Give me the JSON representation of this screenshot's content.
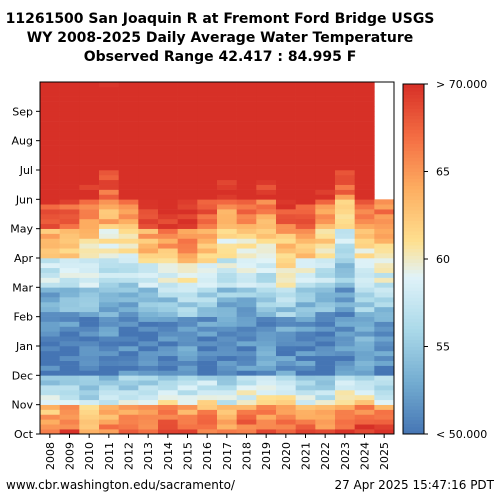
{
  "title_lines": [
    "11261500 San Joaquin R at Fremont Ford Bridge USGS",
    "WY 2008-2025 Daily Average Water Temperature",
    "Observed Range 42.417 : 84.995 F"
  ],
  "footer": {
    "source": "www.cbr.washington.edu/sacramento/",
    "timestamp": "27 Apr 2025 15:47:16 PDT"
  },
  "chart_data": {
    "type": "heatmap",
    "title": "11261500 San Joaquin R at Fremont Ford Bridge USGS WY 2008-2025 Daily Average Water Temperature",
    "subtitle": "Observed Range 42.417 : 84.995 F",
    "x_categories": [
      "2008",
      "2009",
      "2010",
      "2011",
      "2012",
      "2013",
      "2014",
      "2015",
      "2016",
      "2017",
      "2018",
      "2019",
      "2020",
      "2021",
      "2022",
      "2023",
      "2024",
      "2025"
    ],
    "y_months": [
      "Oct",
      "Nov",
      "Dec",
      "Jan",
      "Feb",
      "Mar",
      "Apr",
      "May",
      "Jun",
      "Jul",
      "Aug",
      "Sep"
    ],
    "monthly_mean_temp_F": {
      "Oct": [
        66,
        68,
        64,
        66,
        67,
        67,
        68,
        68,
        67,
        66,
        68,
        68,
        68,
        68,
        67,
        69,
        69,
        68
      ],
      "Nov": [
        58,
        59,
        57,
        58,
        58,
        59,
        60,
        59,
        60,
        58,
        60,
        60,
        60,
        59,
        58,
        60,
        61,
        59
      ],
      "Dec": [
        50,
        51,
        50,
        50,
        51,
        51,
        51,
        52,
        51,
        51,
        51,
        52,
        52,
        51,
        50,
        52,
        52,
        51
      ],
      "Jan": [
        50,
        50,
        50,
        51,
        50,
        50,
        51,
        51,
        51,
        51,
        51,
        51,
        51,
        51,
        51,
        51,
        52,
        52
      ],
      "Feb": [
        52,
        53,
        53,
        53,
        53,
        53,
        54,
        55,
        54,
        53,
        53,
        54,
        55,
        54,
        53,
        52,
        55,
        55
      ],
      "Mar": [
        57,
        57,
        58,
        57,
        56,
        58,
        59,
        60,
        59,
        57,
        58,
        57,
        59,
        58,
        57,
        54,
        58,
        58
      ],
      "Apr": [
        61,
        62,
        61,
        59,
        59,
        62,
        63,
        64,
        62,
        60,
        60,
        60,
        62,
        62,
        60,
        57,
        61,
        61
      ],
      "May": [
        67,
        66,
        64,
        63,
        64,
        67,
        68,
        69,
        67,
        63,
        65,
        64,
        67,
        67,
        64,
        61,
        64,
        66
      ],
      "Jun": [
        72,
        72,
        70,
        67,
        71,
        73,
        74,
        74,
        72,
        69,
        72,
        69,
        73,
        73,
        70,
        66,
        71,
        null
      ],
      "Jul": [
        76,
        76,
        75,
        73,
        75,
        77,
        77,
        78,
        76,
        75,
        77,
        75,
        77,
        77,
        76,
        72,
        76,
        null
      ],
      "Aug": [
        76,
        77,
        75,
        74,
        76,
        77,
        77,
        78,
        76,
        76,
        77,
        75,
        77,
        77,
        76,
        74,
        77,
        null
      ],
      "Sep": [
        73,
        73,
        72,
        71,
        73,
        74,
        73,
        74,
        73,
        73,
        73,
        72,
        74,
        73,
        73,
        72,
        73,
        null
      ]
    },
    "colorbar": {
      "min": 50,
      "max": 70,
      "tick_values": [
        50,
        55,
        60,
        65,
        70
      ],
      "tick_labels": [
        "< 50.000",
        "55",
        "60",
        "65",
        "> 70.000"
      ]
    },
    "legend_placement": "right",
    "grid": false
  }
}
